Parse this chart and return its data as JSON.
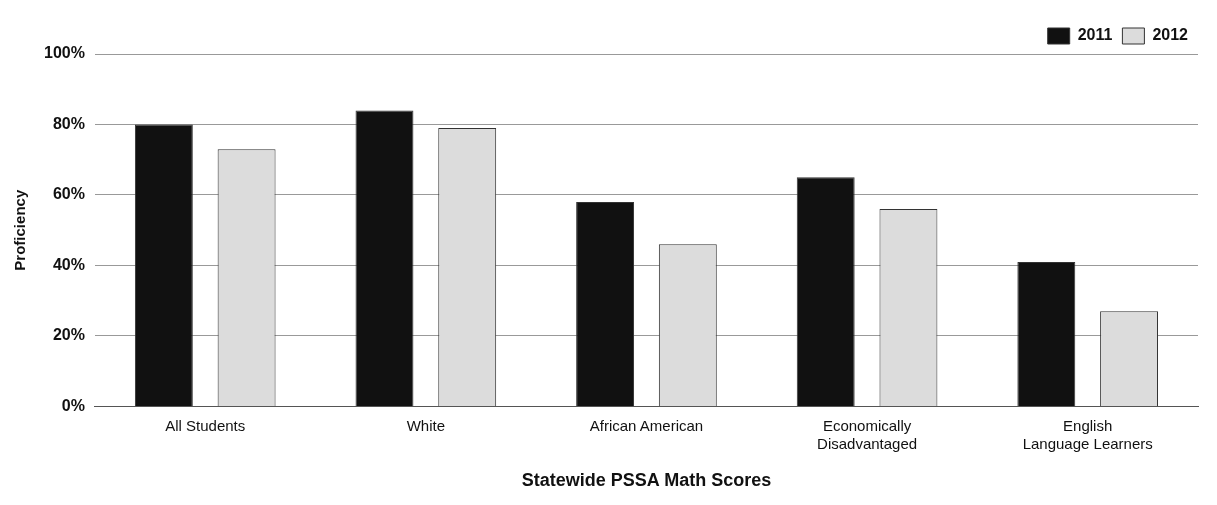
{
  "chart_data": {
    "type": "bar",
    "xlabel": "Statewide PSSA Math Scores",
    "ylabel": "Proficiency",
    "categories": [
      "All Students",
      "White",
      "African American",
      "Economically\nDisadvantaged",
      "English\nLanguage Learners"
    ],
    "series": [
      {
        "name": "2011",
        "color": "#111111",
        "values": [
          80,
          84,
          58,
          65,
          41
        ]
      },
      {
        "name": "2012",
        "color": "#dcdcdc",
        "values": [
          73,
          79,
          46,
          56,
          27
        ]
      }
    ],
    "ylim": [
      0,
      100
    ],
    "yticks": [
      {
        "value": 0,
        "label": "0%"
      },
      {
        "value": 20,
        "label": "20%"
      },
      {
        "value": 40,
        "label": "40%"
      },
      {
        "value": 60,
        "label": "60%"
      },
      {
        "value": 80,
        "label": "80%"
      },
      {
        "value": 100,
        "label": "100%"
      }
    ],
    "grid": "y",
    "legend": "top right"
  }
}
